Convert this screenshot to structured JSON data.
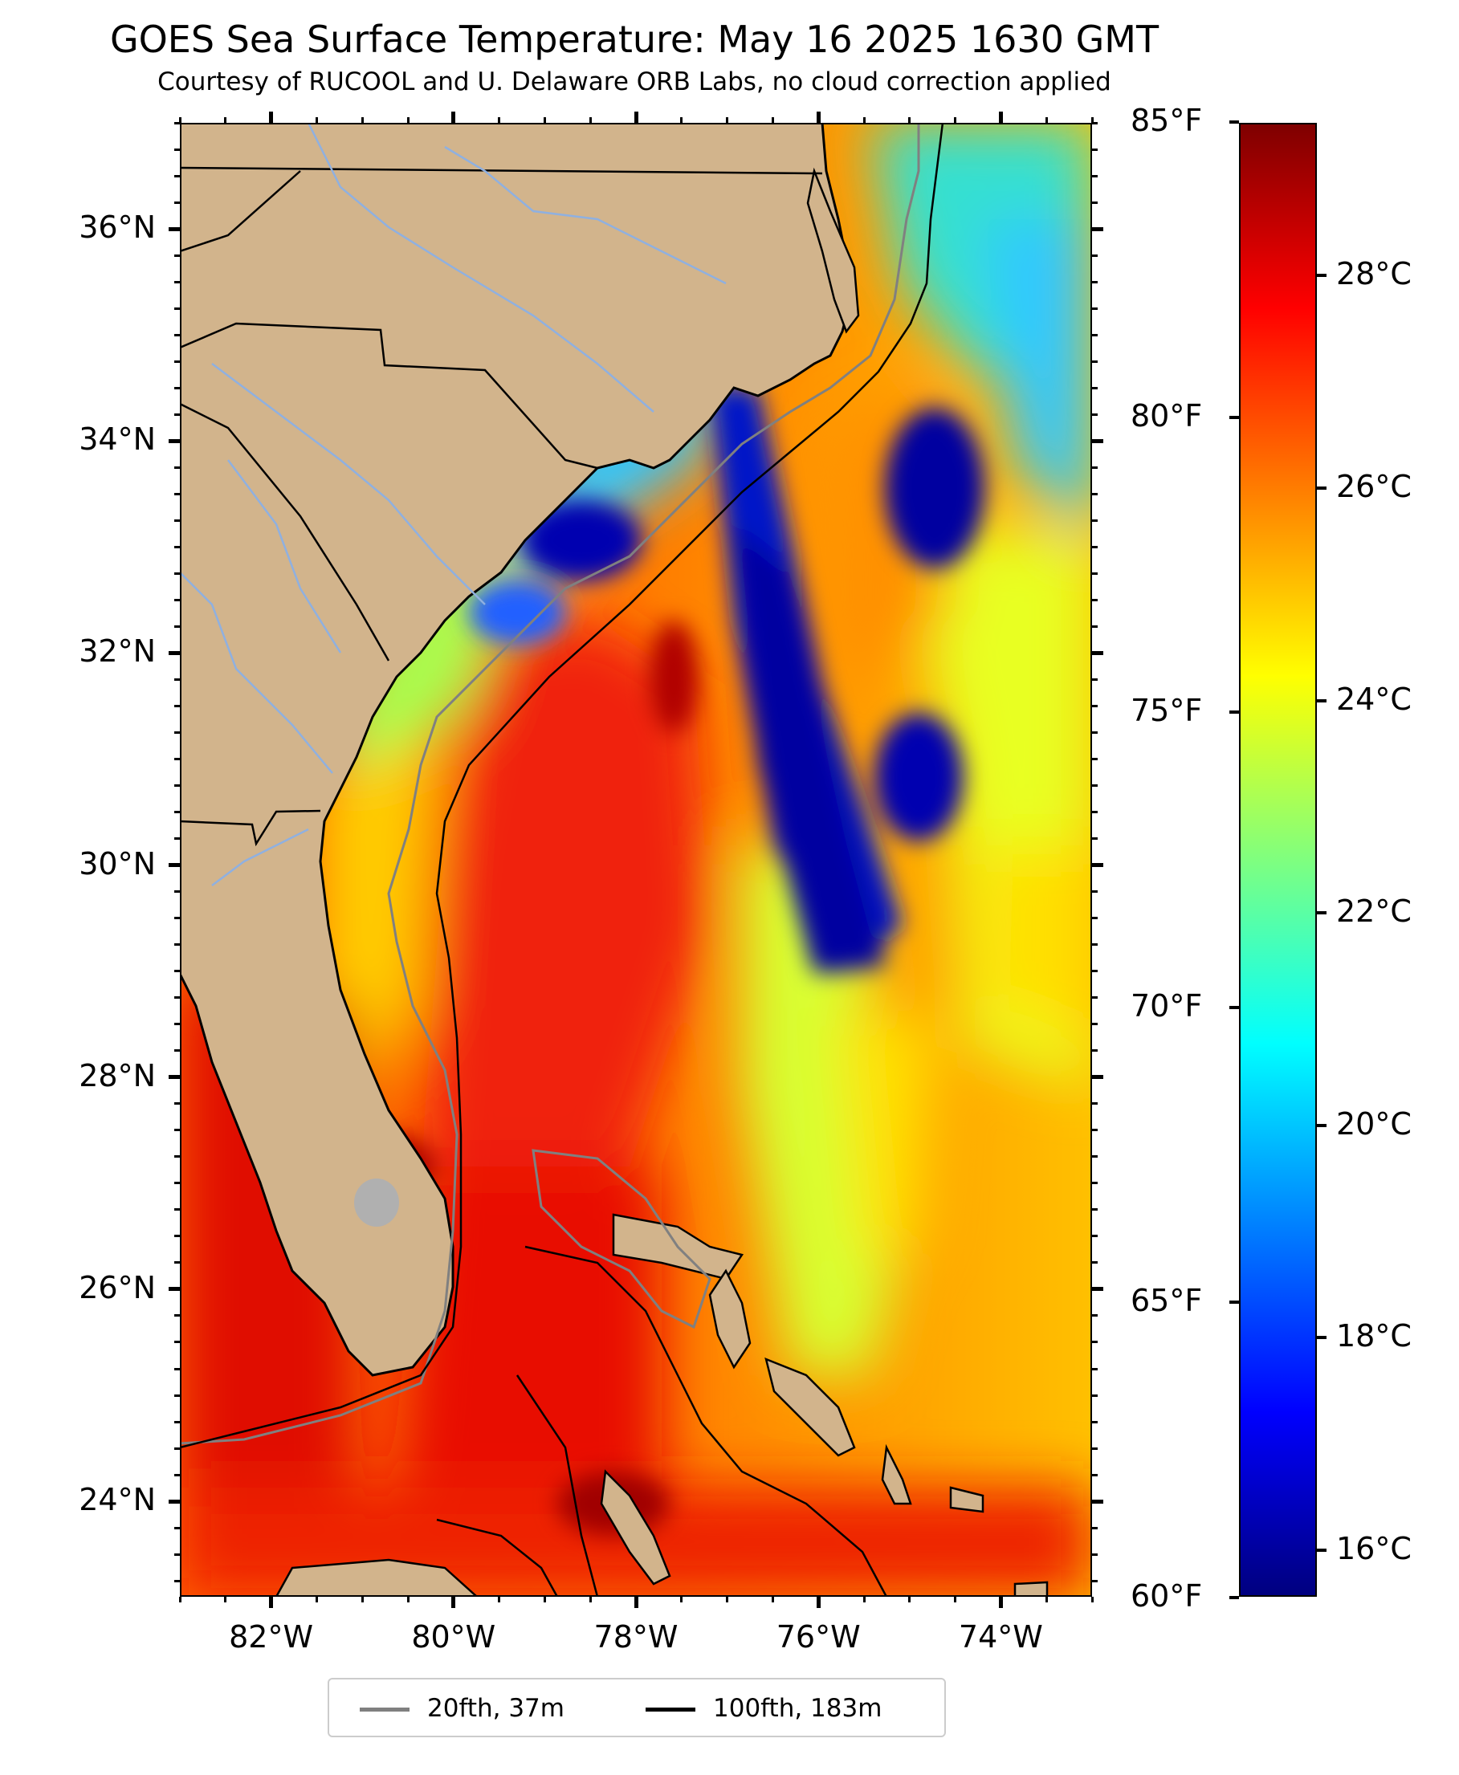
{
  "title": "GOES Sea Surface Temperature: May 16 2025 1630 GMT",
  "subtitle": "Courtesy of RUCOOL and U. Delaware ORB Labs, no cloud correction applied",
  "map": {
    "lon_range": [
      -83,
      -73
    ],
    "lat_range": [
      23.1,
      37.0
    ],
    "land_color": "#d2b48c",
    "state_border_color": "#000000",
    "river_color": "#8fb0e0",
    "lat_ticks": [
      {
        "value": 24,
        "label": "24°N"
      },
      {
        "value": 26,
        "label": "26°N"
      },
      {
        "value": 28,
        "label": "28°N"
      },
      {
        "value": 30,
        "label": "30°N"
      },
      {
        "value": 32,
        "label": "32°N"
      },
      {
        "value": 34,
        "label": "34°N"
      },
      {
        "value": 36,
        "label": "36°N"
      }
    ],
    "lon_ticks": [
      {
        "value": -82,
        "label": "82°W"
      },
      {
        "value": -80,
        "label": "80°W"
      },
      {
        "value": -78,
        "label": "78°W"
      },
      {
        "value": -76,
        "label": "76°W"
      },
      {
        "value": -74,
        "label": "74°W"
      }
    ]
  },
  "colorbar": {
    "colormap": "jet",
    "celsius_range": [
      15.56,
      29.44
    ],
    "fahrenheit_ticks": [
      {
        "value": 60,
        "label": "60°F"
      },
      {
        "value": 65,
        "label": "65°F"
      },
      {
        "value": 70,
        "label": "70°F"
      },
      {
        "value": 75,
        "label": "75°F"
      },
      {
        "value": 80,
        "label": "80°F"
      },
      {
        "value": 85,
        "label": "85°F"
      }
    ],
    "celsius_ticks": [
      {
        "value": 16,
        "label": "16°C"
      },
      {
        "value": 18,
        "label": "18°C"
      },
      {
        "value": 20,
        "label": "20°C"
      },
      {
        "value": 22,
        "label": "22°C"
      },
      {
        "value": 24,
        "label": "24°C"
      },
      {
        "value": 26,
        "label": "26°C"
      },
      {
        "value": 28,
        "label": "28°C"
      }
    ]
  },
  "legend": {
    "items": [
      {
        "label": "20fth, 37m",
        "color": "#808080"
      },
      {
        "label": "100fth, 183m",
        "color": "#000000"
      }
    ]
  }
}
